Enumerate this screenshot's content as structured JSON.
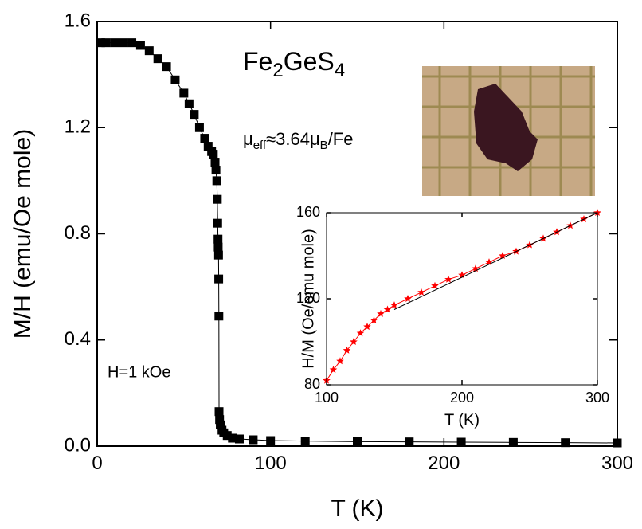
{
  "chart_data": [
    {
      "type": "line",
      "xlabel": "T (K)",
      "ylabel": "M/H (emu/Oe mole)",
      "xlim": [
        0,
        300
      ],
      "ylim": [
        0,
        1.6
      ],
      "xticks": [
        0,
        100,
        200,
        300
      ],
      "yticks": [
        {
          "value": 0,
          "label": "0.0"
        },
        0.4,
        0.8,
        1.2,
        1.6
      ],
      "annotations": {
        "field": "H=1 kOe",
        "formula": [
          "Fe",
          "2",
          "GeS",
          "4"
        ],
        "moment": [
          "μ",
          "eff",
          "≈3.64μ",
          "B",
          "/Fe"
        ]
      },
      "series": [
        {
          "color": "#000000",
          "marker": "square",
          "x": [
            2,
            5,
            10,
            15,
            20,
            25,
            30,
            35,
            40,
            45,
            50,
            53,
            56,
            59,
            62,
            64,
            66,
            67,
            68,
            68.5,
            69,
            69.3,
            69.5,
            69.7,
            69.8,
            70,
            70.1,
            70.2,
            70.3,
            70.6,
            71,
            72,
            73,
            75,
            78,
            82,
            90,
            100,
            120,
            150,
            180,
            210,
            240,
            270,
            300
          ],
          "values": [
            1.52,
            1.52,
            1.52,
            1.52,
            1.52,
            1.51,
            1.49,
            1.46,
            1.43,
            1.38,
            1.33,
            1.29,
            1.25,
            1.2,
            1.16,
            1.13,
            1.11,
            1.1,
            1.07,
            1.04,
            1.0,
            0.93,
            0.84,
            0.78,
            0.75,
            0.72,
            0.63,
            0.49,
            0.13,
            0.1,
            0.08,
            0.06,
            0.05,
            0.04,
            0.03,
            0.027,
            0.024,
            0.021,
            0.019,
            0.017,
            0.016,
            0.015,
            0.014,
            0.013,
            0.012
          ]
        }
      ]
    },
    {
      "type": "line",
      "xlabel": "T (K)",
      "ylabel": "H/M (Oe/emu mole)",
      "xlim": [
        100,
        300
      ],
      "ylim": [
        80,
        160
      ],
      "xticks": [
        100,
        200,
        300
      ],
      "yticks": [
        80,
        120,
        160
      ],
      "series": [
        {
          "color": "#ff0000",
          "marker": "star",
          "x": [
            100,
            105,
            110,
            115,
            120,
            125,
            130,
            135,
            140,
            145,
            150,
            160,
            170,
            180,
            190,
            200,
            210,
            220,
            230,
            240,
            250,
            260,
            270,
            280,
            290,
            300
          ],
          "values": [
            82,
            87,
            91,
            96,
            100,
            104,
            107,
            110,
            113,
            115,
            117,
            120,
            123,
            126,
            129,
            131,
            134,
            137,
            140,
            142,
            145,
            148,
            151,
            154,
            157,
            160
          ]
        },
        {
          "color": "#000000",
          "marker": null,
          "x": [
            150,
            300
          ],
          "values": [
            115,
            160
          ]
        }
      ]
    }
  ]
}
